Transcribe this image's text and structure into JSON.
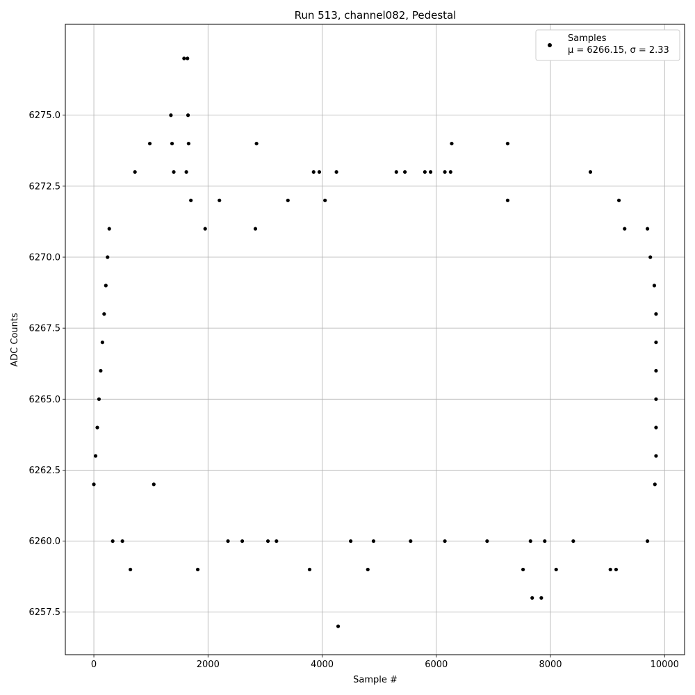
{
  "chart_data": {
    "type": "scatter",
    "title": "Run 513, channel082, Pedestal",
    "xlabel": "Sample #",
    "ylabel": "ADC Counts",
    "xlim": [
      -500,
      10350
    ],
    "ylim": [
      6256.0,
      6278.2
    ],
    "xticks": [
      0,
      2000,
      4000,
      6000,
      8000,
      10000
    ],
    "xtick_labels": [
      "0",
      "2000",
      "4000",
      "6000",
      "8000",
      "10000"
    ],
    "yticks": [
      6257.5,
      6260.0,
      6262.5,
      6265.0,
      6267.5,
      6270.0,
      6272.5,
      6275.0
    ],
    "ytick_labels": [
      "6257.5",
      "6260.0",
      "6262.5",
      "6265.0",
      "6267.5",
      "6270.0",
      "6272.5",
      "6275.0"
    ],
    "grid": true,
    "legend_position": "top-right",
    "marker_color": "#000000",
    "series": [
      {
        "name": "Samples",
        "stats_label": "μ = 6266.15, σ = 2.33",
        "points": [
          [
            0,
            6262
          ],
          [
            30,
            6263
          ],
          [
            60,
            6264
          ],
          [
            90,
            6265
          ],
          [
            120,
            6266
          ],
          [
            150,
            6267
          ],
          [
            180,
            6268
          ],
          [
            210,
            6269
          ],
          [
            240,
            6270
          ],
          [
            270,
            6271
          ],
          [
            330,
            6260
          ],
          [
            500,
            6260
          ],
          [
            640,
            6259
          ],
          [
            720,
            6273
          ],
          [
            980,
            6274
          ],
          [
            1050,
            6262
          ],
          [
            1350,
            6275
          ],
          [
            1370,
            6274
          ],
          [
            1400,
            6273
          ],
          [
            1580,
            6277
          ],
          [
            1640,
            6277
          ],
          [
            1650,
            6275
          ],
          [
            1660,
            6274
          ],
          [
            1620,
            6273
          ],
          [
            1700,
            6272
          ],
          [
            1820,
            6259
          ],
          [
            1950,
            6271
          ],
          [
            2200,
            6272
          ],
          [
            2350,
            6260
          ],
          [
            2600,
            6260
          ],
          [
            2850,
            6274
          ],
          [
            2830,
            6271
          ],
          [
            3050,
            6260
          ],
          [
            3200,
            6260
          ],
          [
            3400,
            6272
          ],
          [
            3780,
            6259
          ],
          [
            3850,
            6273
          ],
          [
            3950,
            6273
          ],
          [
            4050,
            6272
          ],
          [
            4250,
            6273
          ],
          [
            4280,
            6257
          ],
          [
            4500,
            6260
          ],
          [
            4800,
            6259
          ],
          [
            4900,
            6260
          ],
          [
            5300,
            6273
          ],
          [
            5450,
            6273
          ],
          [
            5550,
            6260
          ],
          [
            5800,
            6273
          ],
          [
            5900,
            6273
          ],
          [
            6150,
            6273
          ],
          [
            6250,
            6273
          ],
          [
            6270,
            6274
          ],
          [
            6150,
            6260
          ],
          [
            6890,
            6260
          ],
          [
            7250,
            6274
          ],
          [
            7250,
            6272
          ],
          [
            7520,
            6259
          ],
          [
            7680,
            6258
          ],
          [
            7840,
            6258
          ],
          [
            7650,
            6260
          ],
          [
            7900,
            6260
          ],
          [
            8100,
            6259
          ],
          [
            8700,
            6273
          ],
          [
            8400,
            6260
          ],
          [
            9050,
            6259
          ],
          [
            9150,
            6259
          ],
          [
            9200,
            6272
          ],
          [
            9300,
            6271
          ],
          [
            9700,
            6260
          ],
          [
            9830,
            6262
          ],
          [
            9850,
            6263
          ],
          [
            9850,
            6264
          ],
          [
            9850,
            6265
          ],
          [
            9850,
            6266
          ],
          [
            9850,
            6267
          ],
          [
            9850,
            6268
          ],
          [
            9820,
            6269
          ],
          [
            9750,
            6270
          ],
          [
            9700,
            6271
          ]
        ]
      }
    ]
  }
}
